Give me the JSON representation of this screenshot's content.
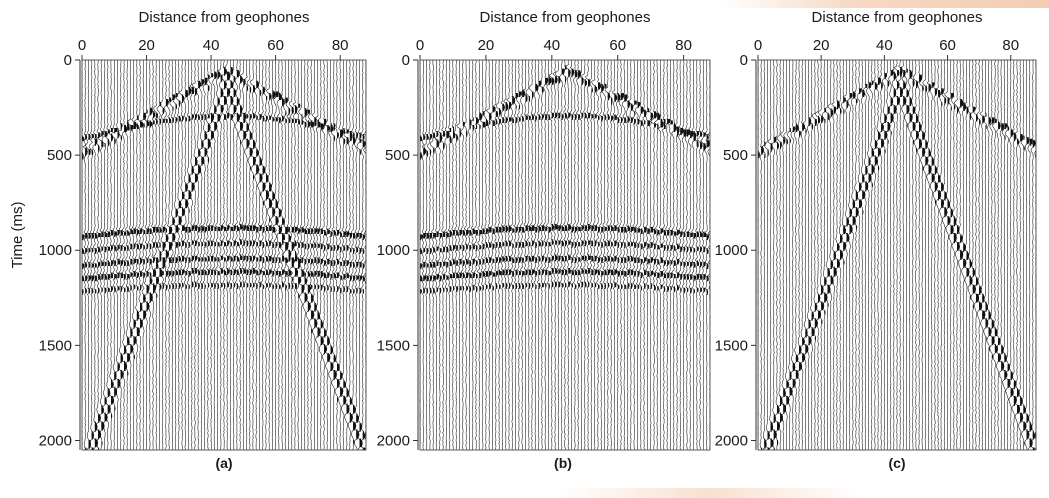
{
  "chart_data": [
    {
      "panel": "a",
      "type": "heatmap",
      "caption": "(a)",
      "xlabel": "Distance from geophones",
      "ylabel": "Time (ms)",
      "x_ticks": [
        0,
        20,
        40,
        60,
        80
      ],
      "y_ticks": [
        0,
        500,
        1000,
        1500,
        2000
      ],
      "xlim": [
        0,
        88
      ],
      "ylim": [
        0,
        2050
      ],
      "y_inverted": true,
      "grid": false,
      "components": {
        "reflections": true,
        "first_breaks": true,
        "ground_roll": true
      }
    },
    {
      "panel": "b",
      "type": "heatmap",
      "caption": "(b)",
      "xlabel": "Distance from geophones",
      "ylabel": "",
      "x_ticks": [
        0,
        20,
        40,
        60,
        80
      ],
      "y_ticks": [
        0,
        500,
        1000,
        1500,
        2000
      ],
      "xlim": [
        0,
        88
      ],
      "ylim": [
        0,
        2050
      ],
      "y_inverted": true,
      "grid": false,
      "components": {
        "reflections": true,
        "first_breaks": true,
        "ground_roll": false
      }
    },
    {
      "panel": "c",
      "type": "heatmap",
      "caption": "(c)",
      "xlabel": "Distance from geophones",
      "ylabel": "",
      "x_ticks": [
        0,
        20,
        40,
        60,
        80
      ],
      "y_ticks": [
        0,
        500,
        1000,
        1500,
        2000
      ],
      "xlim": [
        0,
        88
      ],
      "ylim": [
        0,
        2050
      ],
      "y_inverted": true,
      "grid": false,
      "components": {
        "reflections": false,
        "first_breaks": true,
        "ground_roll": true
      }
    }
  ],
  "colors": {
    "trace": "#111111",
    "background": "#ffffff",
    "axis": "#333333"
  }
}
